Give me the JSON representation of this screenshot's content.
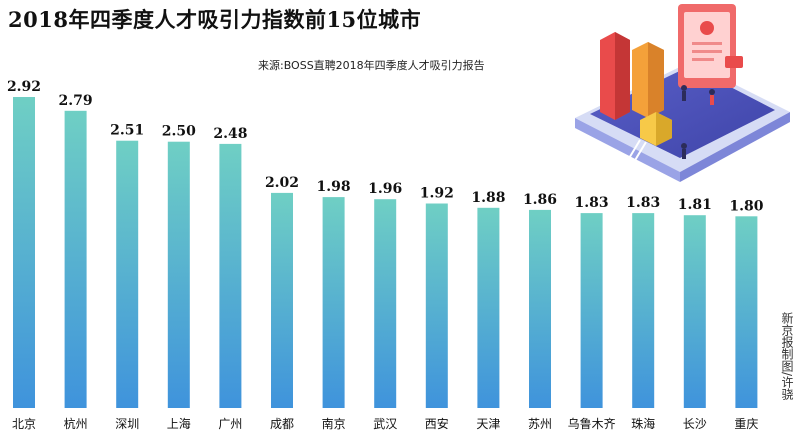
{
  "chart_data": {
    "type": "bar",
    "title": "2018年四季度人才吸引力指数前15位城市",
    "subtitle": "来源:BOSS直聘2018年四季度人才吸引力报告",
    "categories": [
      "北京",
      "杭州",
      "深圳",
      "上海",
      "广州",
      "成都",
      "南京",
      "武汉",
      "西安",
      "天津",
      "苏州",
      "乌鲁木齐",
      "珠海",
      "长沙",
      "重庆"
    ],
    "values": [
      2.92,
      2.79,
      2.51,
      2.5,
      2.48,
      2.02,
      1.98,
      1.96,
      1.92,
      1.88,
      1.86,
      1.83,
      1.83,
      1.81,
      1.8
    ],
    "value_labels": [
      "2.92",
      "2.79",
      "2.51",
      "2.50",
      "2.48",
      "2.02",
      "1.98",
      "1.96",
      "1.92",
      "1.88",
      "1.86",
      "1.83",
      "1.83",
      "1.81",
      "1.80"
    ],
    "xlabel": "",
    "ylabel": "",
    "ylim": [
      0,
      2.92
    ],
    "colors": {
      "bar_top": "#6fcfc4",
      "bar_bottom": "#3f93dc"
    }
  },
  "credit": "新京报制图/许骁"
}
